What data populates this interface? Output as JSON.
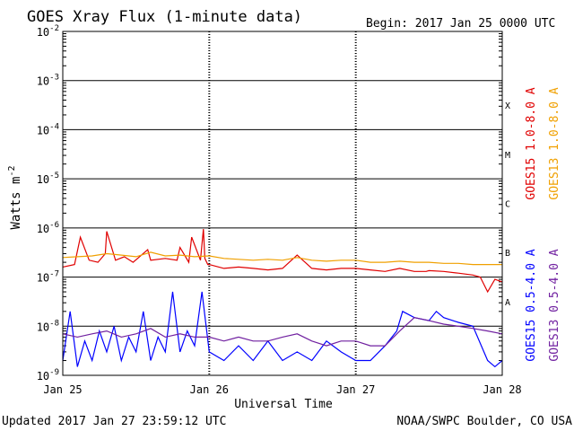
{
  "chart_data": {
    "type": "line",
    "title": "GOES Xray Flux (1-minute data)",
    "begin_label": "Begin:  2017 Jan 25 0000 UTC",
    "ylabel_main": "Watts m",
    "ylabel_exp": "-2",
    "xlabel": "Universal Time",
    "x_ticks": [
      "Jan 25",
      "Jan 26",
      "Jan 27",
      "Jan 28"
    ],
    "y_scale": "log",
    "ylim": [
      1e-09,
      0.01
    ],
    "y_ticks": [
      {
        "base": "10",
        "exp": "-2"
      },
      {
        "base": "10",
        "exp": "-3"
      },
      {
        "base": "10",
        "exp": "-4"
      },
      {
        "base": "10",
        "exp": "-5"
      },
      {
        "base": "10",
        "exp": "-6"
      },
      {
        "base": "10",
        "exp": "-7"
      },
      {
        "base": "10",
        "exp": "-8"
      },
      {
        "base": "10",
        "exp": "-9"
      }
    ],
    "flare_classes": [
      "X",
      "M",
      "C",
      "B",
      "A"
    ],
    "grid": true,
    "legend_placement": "right, vertical",
    "series": [
      {
        "name": "GOES15 1.0-8.0 A",
        "color": "#e00000",
        "x": [
          0,
          0.08,
          0.12,
          0.18,
          0.24,
          0.29,
          0.3,
          0.36,
          0.42,
          0.48,
          0.58,
          0.6,
          0.7,
          0.78,
          0.8,
          0.86,
          0.88,
          0.94,
          0.96,
          0.97,
          0.99,
          1.0,
          1.1,
          1.2,
          1.3,
          1.4,
          1.5,
          1.6,
          1.7,
          1.8,
          1.9,
          2.0,
          2.1,
          2.2,
          2.3,
          2.4,
          2.48,
          2.5,
          2.6,
          2.7,
          2.8,
          2.85,
          2.9,
          2.95,
          3.0
        ],
        "y": [
          1.6e-07,
          1.8e-07,
          6.5e-07,
          2.2e-07,
          2e-07,
          3e-07,
          8.5e-07,
          2.2e-07,
          2.6e-07,
          2e-07,
          3.6e-07,
          2.2e-07,
          2.4e-07,
          2.2e-07,
          4e-07,
          2e-07,
          6.5e-07,
          2.2e-07,
          9.5e-07,
          2.4e-07,
          1.8e-07,
          1.8e-07,
          1.5e-07,
          1.6e-07,
          1.5e-07,
          1.4e-07,
          1.5e-07,
          2.8e-07,
          1.5e-07,
          1.4e-07,
          1.5e-07,
          1.5e-07,
          1.4e-07,
          1.3e-07,
          1.5e-07,
          1.3e-07,
          1.3e-07,
          1.35e-07,
          1.3e-07,
          1.2e-07,
          1.1e-07,
          1e-07,
          5e-08,
          9e-08,
          8e-08
        ]
      },
      {
        "name": "GOES13 1.0-8.0 A",
        "color": "#f0a000",
        "x": [
          0,
          0.1,
          0.2,
          0.3,
          0.4,
          0.5,
          0.6,
          0.7,
          0.8,
          0.9,
          1.0,
          1.1,
          1.2,
          1.3,
          1.4,
          1.5,
          1.6,
          1.7,
          1.8,
          1.9,
          2.0,
          2.1,
          2.2,
          2.3,
          2.4,
          2.5,
          2.6,
          2.7,
          2.8,
          2.9,
          3.0
        ],
        "y": [
          2.5e-07,
          2.6e-07,
          2.7e-07,
          3e-07,
          2.8e-07,
          2.6e-07,
          3.2e-07,
          2.7e-07,
          2.8e-07,
          2.6e-07,
          2.7e-07,
          2.4e-07,
          2.3e-07,
          2.2e-07,
          2.3e-07,
          2.2e-07,
          2.5e-07,
          2.2e-07,
          2.1e-07,
          2.2e-07,
          2.2e-07,
          2e-07,
          2e-07,
          2.1e-07,
          2e-07,
          2e-07,
          1.9e-07,
          1.9e-07,
          1.8e-07,
          1.8e-07,
          1.8e-07
        ]
      },
      {
        "name": "GOES15 0.5-4.0 A",
        "color": "#0000ff",
        "x": [
          0,
          0.05,
          0.1,
          0.15,
          0.2,
          0.25,
          0.3,
          0.35,
          0.4,
          0.45,
          0.5,
          0.55,
          0.6,
          0.65,
          0.7,
          0.75,
          0.8,
          0.85,
          0.9,
          0.95,
          1.0,
          1.1,
          1.2,
          1.3,
          1.4,
          1.5,
          1.6,
          1.7,
          1.8,
          1.9,
          2.0,
          2.1,
          2.2,
          2.28,
          2.32,
          2.4,
          2.5,
          2.55,
          2.6,
          2.7,
          2.8,
          2.9,
          2.95,
          3.0
        ],
        "y": [
          2e-09,
          2e-08,
          1.5e-09,
          5e-09,
          2e-09,
          8e-09,
          3e-09,
          1e-08,
          2e-09,
          6e-09,
          3e-09,
          2e-08,
          2e-09,
          6e-09,
          3e-09,
          5e-08,
          3e-09,
          8e-09,
          4e-09,
          5e-08,
          3e-09,
          2e-09,
          4e-09,
          2e-09,
          5e-09,
          2e-09,
          3e-09,
          2e-09,
          5e-09,
          3e-09,
          2e-09,
          2e-09,
          4e-09,
          8e-09,
          2e-08,
          1.5e-08,
          1.3e-08,
          2e-08,
          1.5e-08,
          1.2e-08,
          1e-08,
          2e-09,
          1.5e-09,
          2e-09
        ]
      },
      {
        "name": "GOES13 0.5-4.0 A",
        "color": "#7020a0",
        "x": [
          0,
          0.1,
          0.2,
          0.3,
          0.4,
          0.5,
          0.6,
          0.7,
          0.8,
          0.9,
          1.0,
          1.1,
          1.2,
          1.3,
          1.4,
          1.5,
          1.6,
          1.7,
          1.8,
          1.9,
          2.0,
          2.1,
          2.2,
          2.3,
          2.4,
          2.5,
          2.6,
          2.7,
          2.8,
          2.9,
          3.0
        ],
        "y": [
          7e-09,
          6e-09,
          7e-09,
          8e-09,
          6e-09,
          7e-09,
          9e-09,
          6e-09,
          7e-09,
          6e-09,
          6e-09,
          5e-09,
          6e-09,
          5e-09,
          5e-09,
          6e-09,
          7e-09,
          5e-09,
          4e-09,
          5e-09,
          5e-09,
          4e-09,
          4e-09,
          8e-09,
          1.5e-08,
          1.3e-08,
          1.1e-08,
          1e-08,
          9e-09,
          8e-09,
          7e-09
        ]
      }
    ]
  },
  "footer": {
    "updated": "Updated 2017 Jan 27 23:59:12 UTC",
    "credit": "NOAA/SWPC Boulder, CO USA"
  }
}
